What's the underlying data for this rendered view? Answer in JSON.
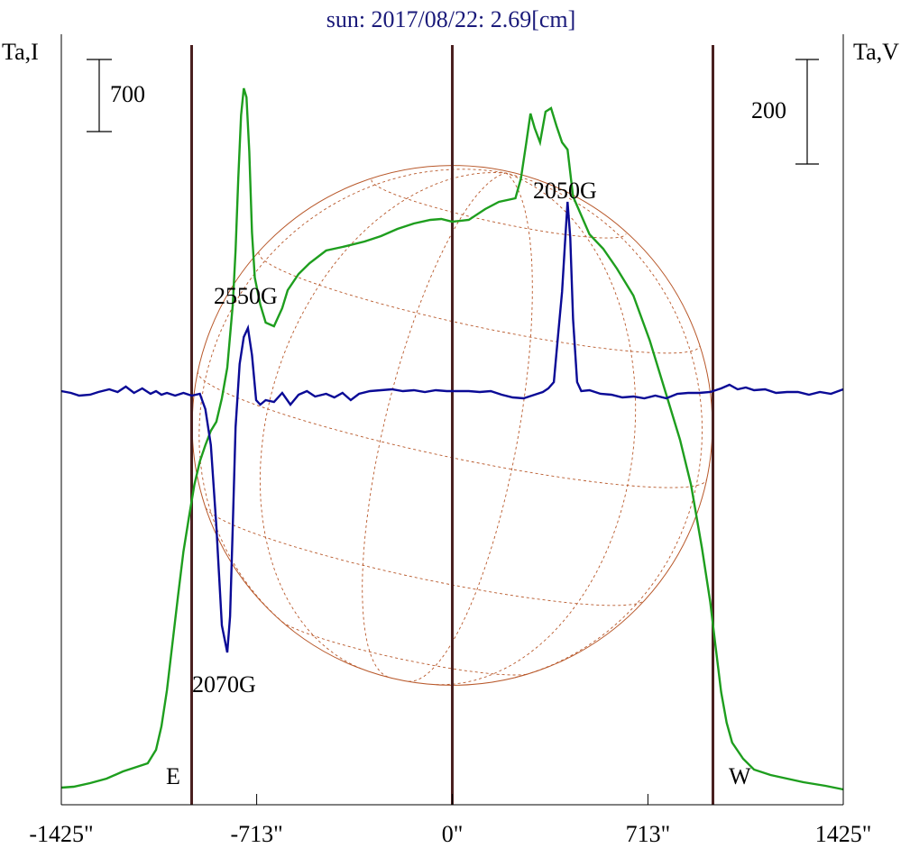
{
  "chart_data": {
    "type": "line",
    "title": "sun: 2017/08/22: 2.69[cm]",
    "ylabel_left": "Ta,I",
    "ylabel_right": "Ta,V",
    "xlim": [
      -1425,
      1425
    ],
    "x_ticks": [
      {
        "value": -1425,
        "label": "-1425\""
      },
      {
        "value": -713,
        "label": "-713\""
      },
      {
        "value": 0,
        "label": "0\""
      },
      {
        "value": 713,
        "label": "713\""
      },
      {
        "value": 1425,
        "label": "1425\""
      }
    ],
    "scale_bars": {
      "left": {
        "label": "700",
        "value": 700
      },
      "right": {
        "label": "200",
        "value": 200
      }
    },
    "vertical_lines": [
      -950,
      0,
      950
    ],
    "limb_labels": {
      "east": "E",
      "west": "W"
    },
    "solar_disk_radius": 948,
    "annotations": [
      {
        "text": "2550G",
        "x": -720,
        "series": "I"
      },
      {
        "text": "2070G",
        "x": -800,
        "series": "V"
      },
      {
        "text": "2050G",
        "x": 430,
        "series": "V"
      }
    ],
    "colors": {
      "intensity": "#1e9e1e",
      "polarization": "#0a0a96",
      "vertical_line": "#4a2020",
      "disk": "#b8582a",
      "title": "#1a1a7a"
    },
    "series": [
      {
        "key": "I",
        "points": [
          [
            -1425,
            20
          ],
          [
            -1380,
            25
          ],
          [
            -1320,
            45
          ],
          [
            -1260,
            70
          ],
          [
            -1200,
            110
          ],
          [
            -1150,
            135
          ],
          [
            -1110,
            155
          ],
          [
            -1080,
            230
          ],
          [
            -1060,
            360
          ],
          [
            -1040,
            560
          ],
          [
            -1020,
            820
          ],
          [
            -1000,
            1080
          ],
          [
            -980,
            1330
          ],
          [
            -960,
            1520
          ],
          [
            -940,
            1700
          ],
          [
            -920,
            1830
          ],
          [
            -900,
            1920
          ],
          [
            -880,
            2000
          ],
          [
            -860,
            2050
          ],
          [
            -840,
            2180
          ],
          [
            -820,
            2350
          ],
          [
            -800,
            2700
          ],
          [
            -790,
            3000
          ],
          [
            -780,
            3400
          ],
          [
            -770,
            3750
          ],
          [
            -760,
            3900
          ],
          [
            -750,
            3850
          ],
          [
            -740,
            3550
          ],
          [
            -730,
            3100
          ],
          [
            -720,
            2850
          ],
          [
            -700,
            2700
          ],
          [
            -680,
            2600
          ],
          [
            -650,
            2580
          ],
          [
            -620,
            2680
          ],
          [
            -600,
            2780
          ],
          [
            -560,
            2870
          ],
          [
            -520,
            2930
          ],
          [
            -460,
            3000
          ],
          [
            -400,
            3020
          ],
          [
            -320,
            3050
          ],
          [
            -260,
            3080
          ],
          [
            -200,
            3120
          ],
          [
            -140,
            3150
          ],
          [
            -80,
            3170
          ],
          [
            -40,
            3175
          ],
          [
            0,
            3160
          ],
          [
            60,
            3170
          ],
          [
            120,
            3230
          ],
          [
            170,
            3270
          ],
          [
            230,
            3290
          ],
          [
            250,
            3400
          ],
          [
            270,
            3600
          ],
          [
            285,
            3760
          ],
          [
            300,
            3680
          ],
          [
            320,
            3600
          ],
          [
            340,
            3770
          ],
          [
            360,
            3790
          ],
          [
            380,
            3690
          ],
          [
            400,
            3600
          ],
          [
            420,
            3560
          ],
          [
            440,
            3300
          ],
          [
            500,
            3090
          ],
          [
            550,
            3010
          ],
          [
            600,
            2900
          ],
          [
            660,
            2750
          ],
          [
            720,
            2500
          ],
          [
            780,
            2200
          ],
          [
            830,
            1950
          ],
          [
            870,
            1700
          ],
          [
            910,
            1350
          ],
          [
            940,
            1050
          ],
          [
            960,
            800
          ],
          [
            980,
            550
          ],
          [
            1000,
            380
          ],
          [
            1020,
            270
          ],
          [
            1060,
            180
          ],
          [
            1100,
            120
          ],
          [
            1160,
            90
          ],
          [
            1220,
            70
          ],
          [
            1280,
            50
          ],
          [
            1360,
            30
          ],
          [
            1425,
            10
          ]
        ]
      },
      {
        "key": "V",
        "points": [
          [
            -1425,
            0
          ],
          [
            -1390,
            -2
          ],
          [
            -1360,
            -5
          ],
          [
            -1320,
            -4
          ],
          [
            -1290,
            -1
          ],
          [
            -1250,
            2
          ],
          [
            -1220,
            -1
          ],
          [
            -1190,
            5
          ],
          [
            -1160,
            -2
          ],
          [
            -1130,
            3
          ],
          [
            -1100,
            -3
          ],
          [
            -1080,
            0
          ],
          [
            -1060,
            -4
          ],
          [
            -1040,
            -2
          ],
          [
            -1010,
            -5
          ],
          [
            -980,
            -2
          ],
          [
            -950,
            -5
          ],
          [
            -920,
            -3
          ],
          [
            -900,
            -20
          ],
          [
            -880,
            -60
          ],
          [
            -860,
            -150
          ],
          [
            -840,
            -260
          ],
          [
            -820,
            -290
          ],
          [
            -810,
            -250
          ],
          [
            -800,
            -150
          ],
          [
            -790,
            -40
          ],
          [
            -775,
            30
          ],
          [
            -760,
            60
          ],
          [
            -745,
            70
          ],
          [
            -730,
            40
          ],
          [
            -715,
            -10
          ],
          [
            -700,
            -15
          ],
          [
            -680,
            -10
          ],
          [
            -650,
            -12
          ],
          [
            -620,
            -2
          ],
          [
            -590,
            -15
          ],
          [
            -560,
            -4
          ],
          [
            -530,
            0
          ],
          [
            -500,
            -6
          ],
          [
            -460,
            -3
          ],
          [
            -430,
            -7
          ],
          [
            -400,
            -2
          ],
          [
            -370,
            -10
          ],
          [
            -340,
            -3
          ],
          [
            -300,
            0
          ],
          [
            -260,
            1
          ],
          [
            -220,
            2
          ],
          [
            -180,
            0
          ],
          [
            -140,
            1
          ],
          [
            -100,
            -1
          ],
          [
            -60,
            1
          ],
          [
            -20,
            0
          ],
          [
            20,
            0
          ],
          [
            60,
            0
          ],
          [
            100,
            -1
          ],
          [
            140,
            0
          ],
          [
            180,
            -4
          ],
          [
            220,
            -7
          ],
          [
            260,
            -8
          ],
          [
            300,
            -4
          ],
          [
            330,
            -1
          ],
          [
            350,
            3
          ],
          [
            370,
            10
          ],
          [
            385,
            60
          ],
          [
            400,
            110
          ],
          [
            410,
            160
          ],
          [
            420,
            210
          ],
          [
            430,
            170
          ],
          [
            440,
            80
          ],
          [
            455,
            10
          ],
          [
            470,
            0
          ],
          [
            500,
            1
          ],
          [
            540,
            -3
          ],
          [
            580,
            -4
          ],
          [
            620,
            -7
          ],
          [
            660,
            -6
          ],
          [
            700,
            -8
          ],
          [
            740,
            -5
          ],
          [
            780,
            -8
          ],
          [
            820,
            -3
          ],
          [
            860,
            -2
          ],
          [
            900,
            -2
          ],
          [
            940,
            -1
          ],
          [
            980,
            3
          ],
          [
            1010,
            7
          ],
          [
            1040,
            2
          ],
          [
            1070,
            4
          ],
          [
            1100,
            1
          ],
          [
            1140,
            2
          ],
          [
            1180,
            -2
          ],
          [
            1220,
            -1
          ],
          [
            1260,
            -1
          ],
          [
            1300,
            -4
          ],
          [
            1340,
            -1
          ],
          [
            1380,
            -3
          ],
          [
            1425,
            2
          ]
        ]
      }
    ]
  }
}
